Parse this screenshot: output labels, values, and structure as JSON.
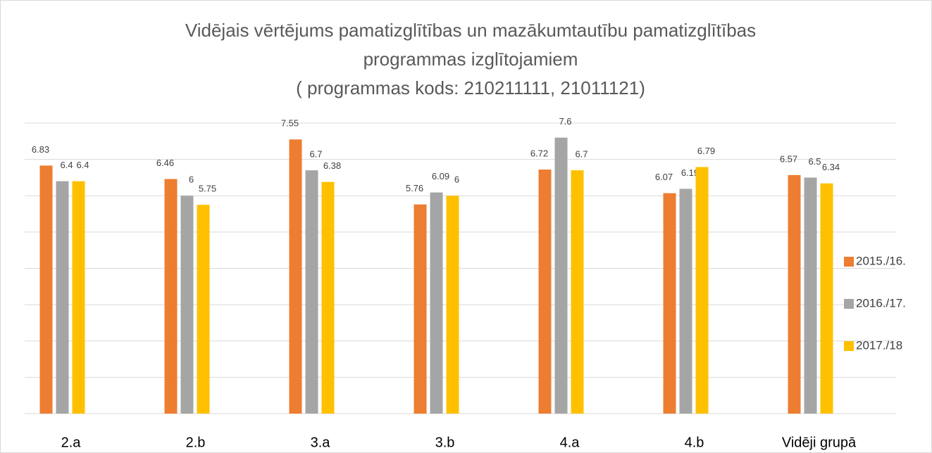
{
  "chart_data": {
    "type": "bar",
    "title": [
      "Vidējais vērtējums pamatizglītības un mazākumtautību pamatizglītības",
      "programmas izglītojamiem",
      "( programmas kods: 210211111, 21011121)"
    ],
    "categories": [
      "2.a",
      "2.b",
      "3.a",
      "3.b",
      "4.a",
      "4.b",
      "Vidēji grupā"
    ],
    "series": [
      {
        "name": "2015./16.",
        "color": "#ed7d31",
        "values": [
          6.83,
          6.46,
          7.55,
          5.76,
          6.72,
          6.07,
          6.57
        ]
      },
      {
        "name": "2016./17.",
        "color": "#a5a5a5",
        "values": [
          6.4,
          6,
          6.7,
          6.09,
          7.6,
          6.19,
          6.5
        ]
      },
      {
        "name": "2017./18",
        "color": "#ffc000",
        "values": [
          6.4,
          5.75,
          6.38,
          6,
          6.7,
          6.79,
          6.34
        ]
      }
    ],
    "ylim": [
      0,
      8
    ],
    "yticks": [
      0,
      1,
      2,
      3,
      4,
      5,
      6,
      7,
      8
    ],
    "grid": true,
    "legend": "right"
  }
}
